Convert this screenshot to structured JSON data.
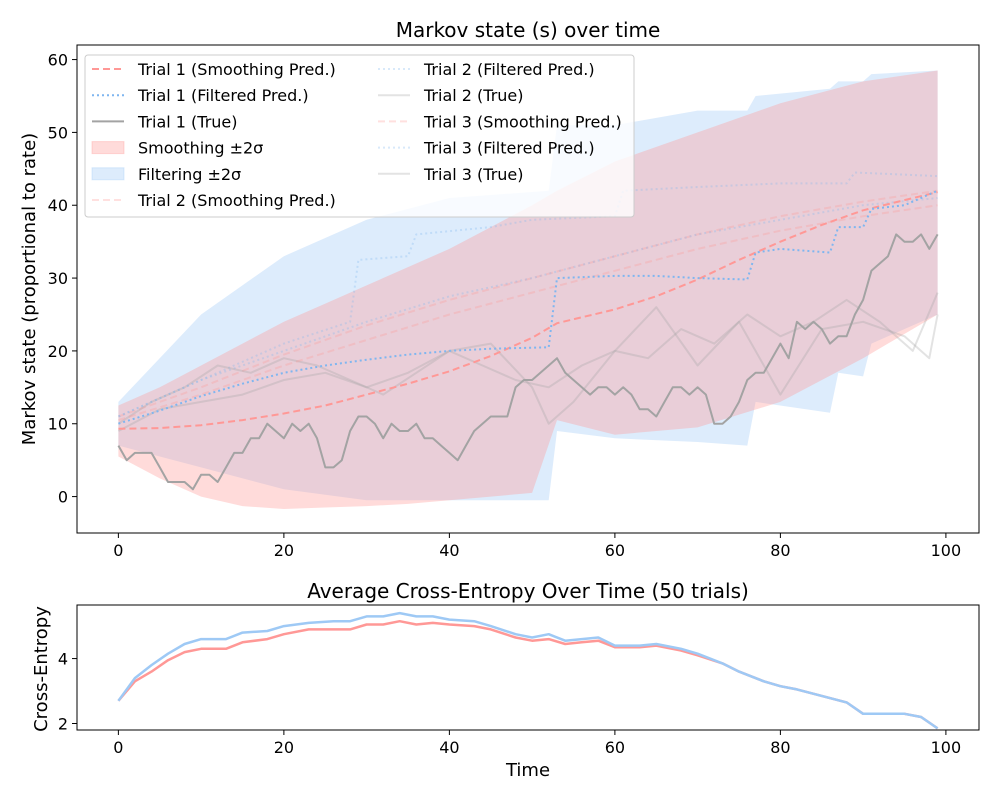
{
  "colors": {
    "smoothing": "#ff9896",
    "filtering": "#9ec9f5",
    "true": "#a3a3a3"
  },
  "chart_data": [
    {
      "type": "line",
      "title": "Markov state (s) over time",
      "xlabel": "",
      "ylabel": "Markov state (proportional to rate)",
      "xlim": [
        -5,
        104
      ],
      "ylim": [
        -5,
        62
      ],
      "xticks": [
        "0",
        "20",
        "40",
        "60",
        "80",
        "100"
      ],
      "yticks": [
        "0",
        "10",
        "20",
        "30",
        "40",
        "50",
        "60"
      ],
      "grid": false,
      "legend": {
        "placement": "top-left",
        "columns": 2,
        "entries": [
          {
            "label": "Trial 1 (Smoothing Pred.)",
            "kind": "dashed",
            "color": "#ff9896",
            "alpha": 1.0
          },
          {
            "label": "Trial 1 (Filtered Pred.)",
            "kind": "dotted",
            "color": "#7fb6f0",
            "alpha": 1.0
          },
          {
            "label": "Trial 1 (True)",
            "kind": "solid",
            "color": "#a3a3a3",
            "alpha": 1.0
          },
          {
            "label": "Smoothing ±2σ",
            "kind": "patch",
            "color": "#ff9896",
            "alpha": 0.35
          },
          {
            "label": "Filtering ±2σ",
            "kind": "patch",
            "color": "#9ec9f5",
            "alpha": 0.35
          },
          {
            "label": "Trial 2 (Smoothing Pred.)",
            "kind": "dashed",
            "color": "#ff9896",
            "alpha": 0.3
          },
          {
            "label": "Trial 2 (Filtered Pred.)",
            "kind": "dotted",
            "color": "#7fb6f0",
            "alpha": 0.3
          },
          {
            "label": "Trial 2 (True)",
            "kind": "solid",
            "color": "#a3a3a3",
            "alpha": 0.3
          },
          {
            "label": "Trial 3 (Smoothing Pred.)",
            "kind": "dashed",
            "color": "#ff9896",
            "alpha": 0.3
          },
          {
            "label": "Trial 3 (Filtered Pred.)",
            "kind": "dotted",
            "color": "#7fb6f0",
            "alpha": 0.3
          },
          {
            "label": "Trial 3 (True)",
            "kind": "solid",
            "color": "#a3a3a3",
            "alpha": 0.3
          }
        ]
      },
      "bands": [
        {
          "name": "Filtering ±2σ",
          "color": "#9ec9f5",
          "alpha": 0.35,
          "x": [
            0,
            10,
            20,
            30,
            40,
            52,
            53,
            60,
            70,
            76,
            77,
            86,
            87,
            90,
            91,
            99
          ],
          "lower": [
            7,
            4,
            1,
            -0.5,
            -0.5,
            -0.5,
            9,
            8,
            7.5,
            7,
            13,
            11.5,
            17,
            16.5,
            21,
            25
          ],
          "upper": [
            13,
            25,
            33,
            38,
            41,
            42,
            51,
            51,
            53,
            53,
            55,
            56,
            57,
            57,
            58,
            58.5
          ]
        },
        {
          "name": "Smoothing ±2σ",
          "color": "#ff9896",
          "alpha": 0.35,
          "x": [
            0,
            5,
            10,
            15,
            20,
            25,
            30,
            35,
            40,
            45,
            50,
            53,
            60,
            70,
            80,
            90,
            99
          ],
          "lower": [
            5.5,
            2.5,
            0,
            -1.3,
            -1.7,
            -1.5,
            -1.3,
            -1.0,
            -0.5,
            0,
            0.5,
            10.5,
            8.5,
            9.5,
            13,
            19,
            25
          ],
          "upper": [
            12.5,
            15,
            18,
            21,
            24,
            26.5,
            29,
            31.5,
            34,
            37,
            40,
            42,
            46,
            50,
            54,
            57,
            58.5
          ]
        }
      ],
      "series": [
        {
          "name": "Trial 1 (Smoothing Pred.)",
          "style": "dashed",
          "color": "#ff9896",
          "alpha": 1.0,
          "x": [
            0,
            5,
            10,
            15,
            20,
            25,
            30,
            35,
            40,
            45,
            50,
            53,
            60,
            65,
            70,
            75,
            80,
            85,
            90,
            95,
            99
          ],
          "y": [
            9.3,
            9.4,
            9.8,
            10.5,
            11.4,
            12.5,
            14.0,
            15.5,
            17.2,
            19.3,
            21.8,
            23.8,
            25.7,
            27.5,
            29.8,
            32.5,
            35.0,
            37.3,
            39.3,
            40.7,
            41.8
          ]
        },
        {
          "name": "Trial 1 (Filtered Pred.)",
          "style": "dotted",
          "color": "#7fb6f0",
          "alpha": 1.0,
          "x": [
            0,
            5,
            10,
            15,
            20,
            25,
            30,
            35,
            40,
            45,
            52,
            53,
            60,
            65,
            70,
            76,
            77,
            80,
            86,
            87,
            90,
            91,
            95,
            98,
            99
          ],
          "y": [
            10,
            11.8,
            13.8,
            15.5,
            17,
            18,
            18.8,
            19.5,
            20,
            20.3,
            20.5,
            30,
            30.3,
            30.3,
            30,
            29.8,
            33.5,
            34,
            33.5,
            37,
            37,
            39.5,
            40,
            41.5,
            42
          ]
        },
        {
          "name": "Trial 1 (True)",
          "style": "solid",
          "color": "#a3a3a3",
          "alpha": 1.0,
          "x": [
            0,
            1,
            2,
            3,
            4,
            5,
            6,
            7,
            8,
            9,
            10,
            11,
            12,
            13,
            14,
            15,
            16,
            17,
            18,
            19,
            20,
            21,
            22,
            23,
            24,
            25,
            26,
            27,
            28,
            29,
            30,
            31,
            32,
            33,
            34,
            35,
            36,
            37,
            38,
            39,
            40,
            41,
            42,
            43,
            44,
            45,
            46,
            47,
            48,
            49,
            50,
            51,
            52,
            53,
            54,
            55,
            56,
            57,
            58,
            59,
            60,
            61,
            62,
            63,
            64,
            65,
            66,
            67,
            68,
            69,
            70,
            71,
            72,
            73,
            74,
            75,
            76,
            77,
            78,
            79,
            80,
            81,
            82,
            83,
            84,
            85,
            86,
            87,
            88,
            89,
            90,
            91,
            92,
            93,
            94,
            95,
            96,
            97,
            98,
            99
          ],
          "y": [
            7,
            5,
            6,
            6,
            6,
            4,
            2,
            2,
            2,
            1,
            3,
            3,
            2,
            4,
            6,
            6,
            8,
            8,
            10,
            9,
            8,
            10,
            9,
            10,
            8,
            4,
            4,
            5,
            9,
            11,
            11,
            10,
            8,
            10,
            9,
            9,
            10,
            8,
            8,
            7,
            6,
            5,
            7,
            9,
            10,
            11,
            11,
            11,
            15,
            16,
            16,
            17,
            18,
            19,
            17,
            16,
            15,
            14,
            15,
            15,
            14,
            15,
            14,
            12,
            12,
            11,
            13,
            15,
            15,
            14,
            15,
            14,
            10,
            10,
            11,
            13,
            16,
            17,
            17,
            19,
            21,
            19,
            24,
            23,
            24,
            23,
            21,
            22,
            22,
            25,
            27,
            31,
            32,
            33,
            36,
            35,
            35,
            36,
            34,
            36
          ]
        },
        {
          "name": "Trial 2 (Smoothing Pred.)",
          "style": "dashed",
          "color": "#ff9896",
          "alpha": 0.3,
          "x": [
            0,
            10,
            20,
            30,
            40,
            50,
            60,
            70,
            80,
            90,
            99
          ],
          "y": [
            11,
            15,
            19.5,
            23.5,
            27,
            30,
            33,
            36,
            38.5,
            40.5,
            42
          ]
        },
        {
          "name": "Trial 2 (Filtered Pred.)",
          "style": "dotted",
          "color": "#7fb6f0",
          "alpha": 0.3,
          "x": [
            0,
            10,
            20,
            28,
            29,
            35,
            36,
            45,
            50,
            60,
            61,
            70,
            80,
            88,
            89,
            99
          ],
          "y": [
            11,
            16,
            21,
            24,
            32.5,
            33,
            36,
            37,
            38,
            38.5,
            42,
            42.5,
            43,
            43,
            44.5,
            44
          ]
        },
        {
          "name": "Trial 2 (True)",
          "style": "solid",
          "color": "#a3a3a3",
          "alpha": 0.3,
          "x": [
            0,
            4,
            8,
            12,
            16,
            20,
            24,
            28,
            32,
            36,
            40,
            44,
            48,
            52,
            56,
            60,
            64,
            68,
            72,
            76,
            80,
            84,
            88,
            92,
            96,
            99
          ],
          "y": [
            10,
            13,
            15,
            18,
            17,
            19,
            18,
            16,
            14,
            17,
            20,
            18,
            16,
            15,
            18,
            20,
            19,
            23,
            21,
            25,
            22,
            24,
            27,
            24,
            20,
            28
          ]
        },
        {
          "name": "Trial 3 (Smoothing Pred.)",
          "style": "dashed",
          "color": "#ff9896",
          "alpha": 0.3,
          "x": [
            0,
            10,
            20,
            30,
            40,
            50,
            60,
            70,
            80,
            90,
            99
          ],
          "y": [
            10.5,
            14,
            18,
            21.5,
            25,
            28,
            31,
            34,
            36.5,
            38.5,
            40
          ]
        },
        {
          "name": "Trial 3 (Filtered Pred.)",
          "style": "dotted",
          "color": "#7fb6f0",
          "alpha": 0.3,
          "x": [
            0,
            10,
            20,
            30,
            40,
            50,
            60,
            70,
            80,
            90,
            99
          ],
          "y": [
            11,
            16,
            20,
            24,
            27.5,
            30,
            33,
            36,
            38,
            40,
            41
          ]
        },
        {
          "name": "Trial 3 (True)",
          "style": "solid",
          "color": "#a3a3a3",
          "alpha": 0.3,
          "x": [
            0,
            5,
            10,
            15,
            20,
            25,
            30,
            35,
            40,
            45,
            50,
            52,
            55,
            60,
            65,
            70,
            75,
            80,
            85,
            90,
            95,
            98,
            99
          ],
          "y": [
            9,
            12,
            13,
            14,
            16,
            17,
            15,
            17,
            20,
            21,
            15,
            10,
            13,
            20,
            26,
            18,
            24,
            14,
            23,
            24,
            22,
            19,
            25
          ]
        }
      ]
    },
    {
      "type": "line",
      "title": "Average Cross-Entropy Over Time (50 trials)",
      "xlabel": "Time",
      "ylabel": "Cross-Entropy",
      "xlim": [
        -5,
        104
      ],
      "ylim": [
        1.8,
        5.65
      ],
      "xticks": [
        "0",
        "20",
        "40",
        "60",
        "80",
        "100"
      ],
      "yticks": [
        "2",
        "4"
      ],
      "grid": false,
      "series": [
        {
          "name": "",
          "style": "solid",
          "color": "#ff9896",
          "alpha": 1.0,
          "x": [
            0,
            2,
            4,
            6,
            8,
            10,
            13,
            15,
            18,
            20,
            23,
            26,
            28,
            30,
            32,
            34,
            36,
            38,
            40,
            43,
            45,
            48,
            50,
            52,
            54,
            56,
            58,
            60,
            63,
            65,
            68,
            70,
            73,
            75,
            78,
            80,
            82,
            85,
            88,
            90,
            93,
            95,
            97,
            99
          ],
          "y": [
            2.7,
            3.3,
            3.6,
            3.95,
            4.2,
            4.3,
            4.3,
            4.5,
            4.6,
            4.75,
            4.9,
            4.9,
            4.9,
            5.05,
            5.05,
            5.15,
            5.05,
            5.1,
            5.05,
            5.0,
            4.9,
            4.65,
            4.55,
            4.6,
            4.45,
            4.5,
            4.55,
            4.35,
            4.35,
            4.4,
            4.25,
            4.1,
            3.85,
            3.6,
            3.3,
            3.15,
            3.05,
            2.85,
            2.65,
            2.3,
            2.3,
            2.3,
            2.2,
            1.85
          ]
        },
        {
          "name": "",
          "style": "solid",
          "color": "#9ec9f5",
          "alpha": 1.0,
          "x": [
            0,
            2,
            4,
            6,
            8,
            10,
            13,
            15,
            18,
            20,
            23,
            26,
            28,
            30,
            32,
            34,
            36,
            38,
            40,
            43,
            45,
            48,
            50,
            52,
            54,
            56,
            58,
            60,
            63,
            65,
            68,
            70,
            73,
            75,
            78,
            80,
            82,
            85,
            88,
            90,
            93,
            95,
            97,
            99
          ],
          "y": [
            2.7,
            3.4,
            3.8,
            4.15,
            4.45,
            4.6,
            4.6,
            4.8,
            4.85,
            5.0,
            5.1,
            5.15,
            5.15,
            5.3,
            5.3,
            5.4,
            5.3,
            5.3,
            5.2,
            5.15,
            5.0,
            4.75,
            4.65,
            4.75,
            4.55,
            4.6,
            4.65,
            4.4,
            4.4,
            4.45,
            4.3,
            4.15,
            3.85,
            3.6,
            3.3,
            3.15,
            3.05,
            2.85,
            2.65,
            2.3,
            2.3,
            2.3,
            2.2,
            1.85
          ]
        }
      ]
    }
  ]
}
